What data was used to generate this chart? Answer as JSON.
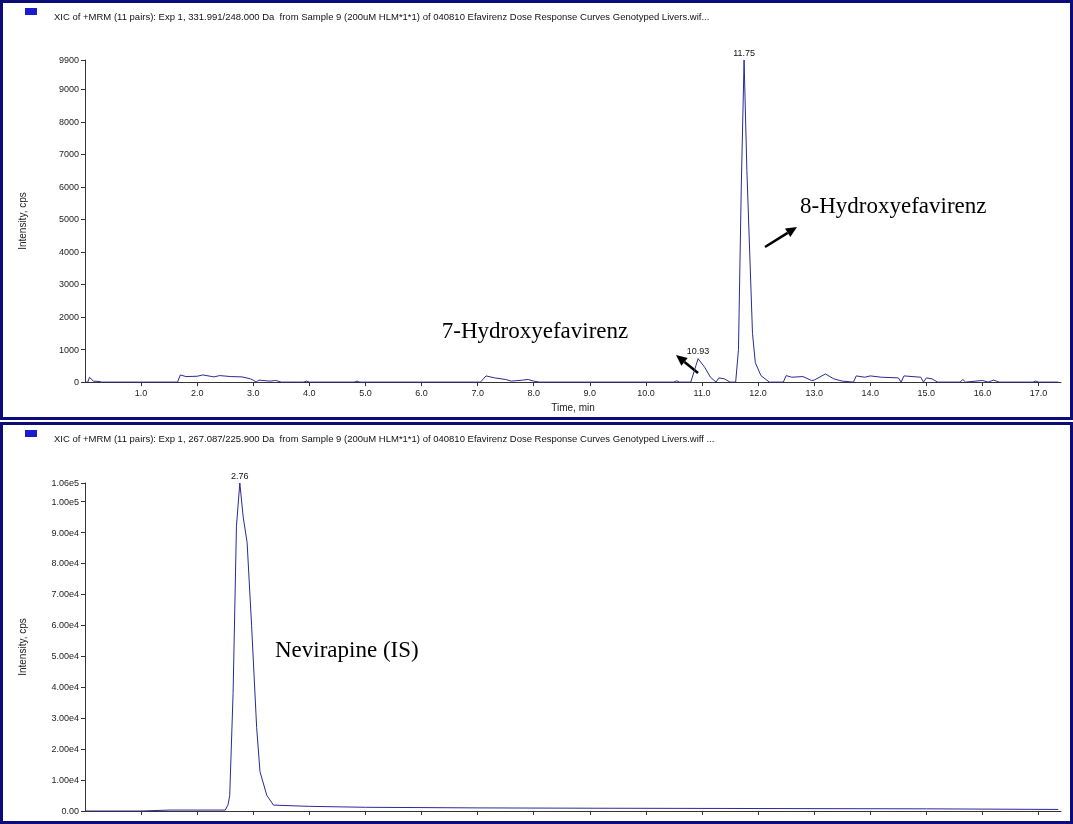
{
  "chart_data": [
    {
      "type": "line",
      "title": "XIC of +MRM (11 pairs): Exp 1, 331.991/248.000 Da  from Sample 9 (200uM HLM*1*1) of 040810 Efavirenz Dose Response Curves Genotyped Livers.wif...",
      "xlabel": "Time, min",
      "ylabel": "Intensity, cps",
      "series": [
        {
          "color": "#2a2a96",
          "x": [
            0,
            0.05,
            0.08,
            0.15,
            0.25,
            0.3,
            1.65,
            1.7,
            1.8,
            2.0,
            2.1,
            2.3,
            2.4,
            2.6,
            2.8,
            2.95,
            3.0,
            3.05,
            3.1,
            3.3,
            3.4,
            3.5,
            3.9,
            3.95,
            4.0,
            4.8,
            4.85,
            4.9,
            7.05,
            7.15,
            7.3,
            7.5,
            7.6,
            7.8,
            7.9,
            8.0,
            8.1,
            10.5,
            10.55,
            10.6,
            10.8,
            10.93,
            11.05,
            11.15,
            11.25,
            11.3,
            11.4,
            11.5,
            11.6,
            11.65,
            11.7,
            11.75,
            11.8,
            11.85,
            11.9,
            11.95,
            12.05,
            12.2,
            12.45,
            12.5,
            12.6,
            12.8,
            12.95,
            13.0,
            13.2,
            13.35,
            13.5,
            13.7,
            13.75,
            13.9,
            14.0,
            14.2,
            14.5,
            14.55,
            14.6,
            14.9,
            14.95,
            15.0,
            15.1,
            15.2,
            15.6,
            15.65,
            15.7,
            16.0,
            16.1,
            16.2,
            16.3,
            16.9,
            16.95,
            17.0,
            17.35
          ],
          "values": [
            0,
            0,
            150,
            30,
            20,
            0,
            0,
            220,
            170,
            180,
            220,
            160,
            200,
            170,
            160,
            100,
            60,
            0,
            60,
            30,
            50,
            0,
            0,
            30,
            0,
            0,
            30,
            0,
            0,
            190,
            130,
            80,
            30,
            60,
            80,
            30,
            0,
            0,
            40,
            0,
            0,
            720,
            450,
            150,
            0,
            130,
            100,
            0,
            0,
            1000,
            6000,
            9900,
            6500,
            4000,
            1500,
            600,
            200,
            0,
            0,
            200,
            150,
            170,
            50,
            60,
            250,
            100,
            30,
            0,
            190,
            150,
            190,
            150,
            130,
            0,
            190,
            150,
            0,
            130,
            100,
            0,
            0,
            80,
            0,
            50,
            0,
            60,
            0,
            0,
            30,
            0,
            0
          ]
        }
      ],
      "xlim": [
        0,
        17.4
      ],
      "xticks": [
        {
          "value": 1,
          "label": "1.0"
        },
        {
          "value": 2,
          "label": "2.0"
        },
        {
          "value": 3,
          "label": "3.0"
        },
        {
          "value": 4,
          "label": "4.0"
        },
        {
          "value": 5,
          "label": "5.0"
        },
        {
          "value": 6,
          "label": "6.0"
        },
        {
          "value": 7,
          "label": "7.0"
        },
        {
          "value": 8,
          "label": "8.0"
        },
        {
          "value": 9,
          "label": "9.0"
        },
        {
          "value": 10,
          "label": "10.0"
        },
        {
          "value": 11,
          "label": "11.0"
        },
        {
          "value": 12,
          "label": "12.0"
        },
        {
          "value": 13,
          "label": "13.0"
        },
        {
          "value": 14,
          "label": "14.0"
        },
        {
          "value": 15,
          "label": "15.0"
        },
        {
          "value": 16,
          "label": "16.0"
        },
        {
          "value": 17,
          "label": "17.0"
        }
      ],
      "ylim": [
        0,
        9900
      ],
      "yticks": [
        0,
        1000,
        2000,
        3000,
        4000,
        5000,
        6000,
        7000,
        8000,
        9000,
        9900
      ],
      "annotations": [
        {
          "text": "11.75",
          "x": 11.75,
          "y": 9900
        },
        {
          "text": "10.93",
          "x": 10.93,
          "y": 720
        },
        "8-Hydroxyefavirenz",
        "7-Hydroxyefavirenz"
      ],
      "grid": false,
      "marker": "none",
      "line_style": "solid"
    },
    {
      "type": "line",
      "title": "XIC of +MRM (11 pairs): Exp 1, 267.087/225.900 Da  from Sample 9 (200uM HLM*1*1) of 040810 Efavirenz Dose Response Curves Genotyped Livers.wiff ...",
      "ylabel": "Intensity, cps",
      "series": [
        {
          "color": "#2a2a96",
          "x": [
            0,
            1.0,
            1.5,
            2.0,
            2.5,
            2.55,
            2.58,
            2.64,
            2.7,
            2.76,
            2.82,
            2.89,
            2.97,
            3.06,
            3.12,
            3.24,
            3.36,
            4.0,
            5.0,
            7.0,
            9.0,
            12.0,
            15.0,
            17.35
          ],
          "values": [
            0,
            0,
            300,
            300,
            300,
            2000,
            5000,
            38000,
            92000,
            106000,
            95000,
            86800,
            60000,
            27000,
            12700,
            5100,
            1900,
            1500,
            1200,
            1000,
            900,
            800,
            700,
            500
          ]
        }
      ],
      "xlim": [
        0,
        17.4
      ],
      "xticks": [
        {
          "value": 1,
          "label": null
        },
        {
          "value": 2,
          "label": null
        },
        {
          "value": 3,
          "label": null
        },
        {
          "value": 4,
          "label": null
        },
        {
          "value": 5,
          "label": null
        },
        {
          "value": 6,
          "label": null
        },
        {
          "value": 7,
          "label": null
        },
        {
          "value": 8,
          "label": null
        },
        {
          "value": 9,
          "label": null
        },
        {
          "value": 10,
          "label": null
        },
        {
          "value": 11,
          "label": null
        },
        {
          "value": 12,
          "label": null
        },
        {
          "value": 13,
          "label": null
        },
        {
          "value": 14,
          "label": null
        },
        {
          "value": 15,
          "label": null
        },
        {
          "value": 16,
          "label": null
        },
        {
          "value": 17,
          "label": null
        }
      ],
      "ylim": [
        0,
        106000
      ],
      "yticks": [
        {
          "value": 0,
          "label": "0.00"
        },
        {
          "value": 10000,
          "label": "1.00e4"
        },
        {
          "value": 20000,
          "label": "2.00e4"
        },
        {
          "value": 30000,
          "label": "3.00e4"
        },
        {
          "value": 40000,
          "label": "4.00e4"
        },
        {
          "value": 50000,
          "label": "5.00e4"
        },
        {
          "value": 60000,
          "label": "6.00e4"
        },
        {
          "value": 70000,
          "label": "7.00e4"
        },
        {
          "value": 80000,
          "label": "8.00e4"
        },
        {
          "value": 90000,
          "label": "9.00e4"
        },
        {
          "value": 100000,
          "label": "1.00e5"
        },
        {
          "value": 106000,
          "label": "1.06e5"
        }
      ],
      "annotations": [
        {
          "text": "2.76",
          "x": 2.76,
          "y": 106000
        },
        "Nevirapine (IS)"
      ],
      "tick_labels": "y",
      "grid": false,
      "marker": "none",
      "line_style": "solid"
    }
  ]
}
